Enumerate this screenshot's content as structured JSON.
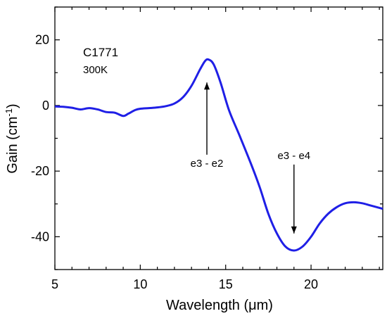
{
  "chart_data": {
    "type": "line",
    "xlabel": "Wavelength (μm)",
    "ylabel": "Gain (cm-1)",
    "xlim": [
      5,
      24.2
    ],
    "ylim": [
      -50,
      30
    ],
    "x_ticks": [
      5,
      10,
      15,
      20
    ],
    "x_tick_labels": [
      "5",
      "10",
      "15",
      "20"
    ],
    "y_ticks": [
      -40,
      -20,
      0,
      20
    ],
    "y_tick_labels": [
      "-40",
      "-20",
      "0",
      "20"
    ],
    "grid": false,
    "line_color": "#1f1fe6",
    "sample_label": "C1771",
    "temperature_label": "300K",
    "annotations": [
      {
        "text": "e3 - e2",
        "x": 13.9,
        "y_from": -15,
        "y_to": 7,
        "direction": "up"
      },
      {
        "text": "e3 - e4",
        "x": 19.0,
        "y_from": -18,
        "y_to": -39,
        "direction": "down"
      }
    ],
    "series": [
      {
        "points": [
          [
            5.0,
            -0.3
          ],
          [
            5.5,
            -0.4
          ],
          [
            6.0,
            -0.7
          ],
          [
            6.5,
            -1.2
          ],
          [
            7.0,
            -0.8
          ],
          [
            7.5,
            -1.2
          ],
          [
            8.0,
            -2.0
          ],
          [
            8.5,
            -2.2
          ],
          [
            9.0,
            -3.2
          ],
          [
            9.3,
            -2.5
          ],
          [
            9.7,
            -1.4
          ],
          [
            10.0,
            -1.0
          ],
          [
            10.5,
            -0.8
          ],
          [
            11.0,
            -0.6
          ],
          [
            11.5,
            -0.2
          ],
          [
            12.0,
            0.6
          ],
          [
            12.5,
            2.5
          ],
          [
            13.0,
            6.0
          ],
          [
            13.5,
            11.0
          ],
          [
            13.8,
            13.6
          ],
          [
            14.0,
            14.0
          ],
          [
            14.3,
            12.5
          ],
          [
            14.7,
            7.0
          ],
          [
            15.2,
            -1.5
          ],
          [
            15.8,
            -9.0
          ],
          [
            16.5,
            -18.0
          ],
          [
            17.0,
            -25.0
          ],
          [
            17.5,
            -33.0
          ],
          [
            18.0,
            -39.0
          ],
          [
            18.5,
            -43.0
          ],
          [
            19.0,
            -44.2
          ],
          [
            19.5,
            -43.0
          ],
          [
            20.0,
            -40.0
          ],
          [
            20.5,
            -36.0
          ],
          [
            21.0,
            -33.0
          ],
          [
            21.5,
            -31.0
          ],
          [
            22.0,
            -29.8
          ],
          [
            22.5,
            -29.5
          ],
          [
            23.0,
            -29.8
          ],
          [
            23.5,
            -30.5
          ],
          [
            24.2,
            -31.5
          ]
        ]
      }
    ]
  }
}
